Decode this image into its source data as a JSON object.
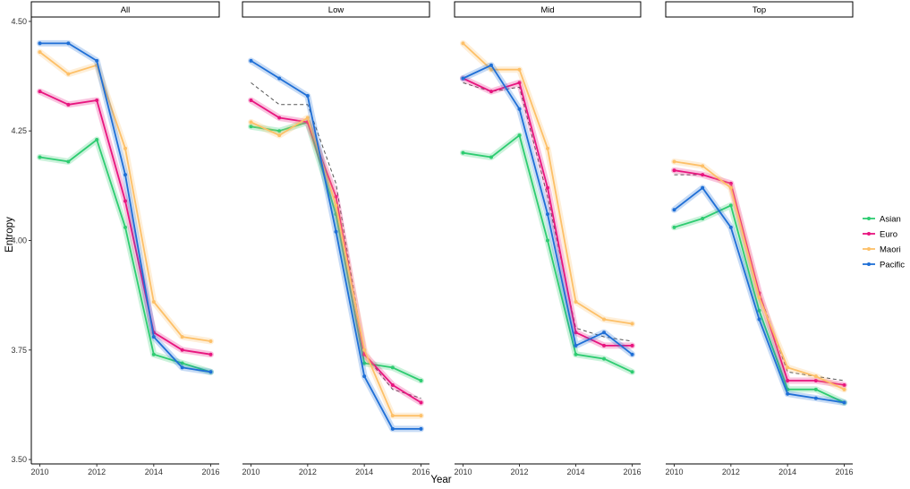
{
  "chart_data": {
    "type": "line",
    "xlabel": "Year",
    "ylabel": "Entropy",
    "ylim": [
      3.49,
      4.51
    ],
    "y_ticks": [
      3.5,
      3.75,
      4.0,
      4.25,
      4.5
    ],
    "y_tick_labels": [
      "3.50",
      "3.75",
      "4.00",
      "4.25",
      "4.50"
    ],
    "x_ticks": [
      2010,
      2012,
      2014,
      2016
    ],
    "x_tick_labels": [
      "2010",
      "2012",
      "2014",
      "2016"
    ],
    "x_range": [
      2009.7,
      2016.3
    ],
    "legend_position": "right",
    "grid": false,
    "x": [
      2010,
      2011,
      2012,
      2013,
      2014,
      2015,
      2016
    ],
    "series_styles": [
      {
        "name": "Asian",
        "color": "#2ecc71"
      },
      {
        "name": "Euro",
        "color": "#e8157f"
      },
      {
        "name": "Maori",
        "color": "#fdc068"
      },
      {
        "name": "Pacific",
        "color": "#1f6fd6"
      }
    ],
    "facets": [
      {
        "label": "All",
        "series": [
          {
            "name": "Asian",
            "values": [
              4.19,
              4.18,
              4.23,
              4.03,
              3.74,
              3.72,
              3.7
            ]
          },
          {
            "name": "Euro",
            "values": [
              4.34,
              4.31,
              4.32,
              4.09,
              3.79,
              3.75,
              3.74
            ]
          },
          {
            "name": "Maori",
            "values": [
              4.43,
              4.38,
              4.4,
              4.21,
              3.86,
              3.78,
              3.77
            ]
          },
          {
            "name": "Pacific",
            "values": [
              4.45,
              4.45,
              4.41,
              4.15,
              3.78,
              3.71,
              3.7
            ]
          }
        ],
        "reference": []
      },
      {
        "label": "Low",
        "series": [
          {
            "name": "Asian",
            "values": [
              4.26,
              4.25,
              4.27,
              4.06,
              3.72,
              3.71,
              3.68
            ]
          },
          {
            "name": "Euro",
            "values": [
              4.32,
              4.28,
              4.27,
              4.1,
              3.74,
              3.67,
              3.63
            ]
          },
          {
            "name": "Maori",
            "values": [
              4.27,
              4.24,
              4.28,
              4.08,
              3.75,
              3.6,
              3.6
            ]
          },
          {
            "name": "Pacific",
            "values": [
              4.41,
              4.37,
              4.33,
              4.02,
              3.69,
              3.57,
              3.57
            ]
          }
        ],
        "reference": [
          4.36,
          4.31,
          4.31,
          4.13,
          3.74,
          3.66,
          3.64
        ]
      },
      {
        "label": "Mid",
        "series": [
          {
            "name": "Asian",
            "values": [
              4.2,
              4.19,
              4.24,
              4.0,
              3.74,
              3.73,
              3.7
            ]
          },
          {
            "name": "Euro",
            "values": [
              4.37,
              4.34,
              4.36,
              4.12,
              3.79,
              3.76,
              3.76
            ]
          },
          {
            "name": "Maori",
            "values": [
              4.45,
              4.39,
              4.39,
              4.21,
              3.86,
              3.82,
              3.81
            ]
          },
          {
            "name": "Pacific",
            "values": [
              4.37,
              4.4,
              4.3,
              4.06,
              3.76,
              3.79,
              3.74
            ]
          }
        ],
        "reference": [
          4.36,
          4.34,
          4.35,
          4.1,
          3.8,
          3.78,
          3.77
        ]
      },
      {
        "label": "Top",
        "series": [
          {
            "name": "Asian",
            "values": [
              4.03,
              4.05,
              4.08,
              3.84,
              3.66,
              3.66,
              3.63
            ]
          },
          {
            "name": "Euro",
            "values": [
              4.16,
              4.15,
              4.13,
              3.88,
              3.68,
              3.68,
              3.67
            ]
          },
          {
            "name": "Maori",
            "values": [
              4.18,
              4.17,
              4.12,
              3.87,
              3.71,
              3.69,
              3.66
            ]
          },
          {
            "name": "Pacific",
            "values": [
              4.07,
              4.12,
              4.03,
              3.82,
              3.65,
              3.64,
              3.63
            ]
          }
        ],
        "reference": [
          4.15,
          4.15,
          4.13,
          3.88,
          3.7,
          3.69,
          3.68
        ]
      }
    ]
  }
}
